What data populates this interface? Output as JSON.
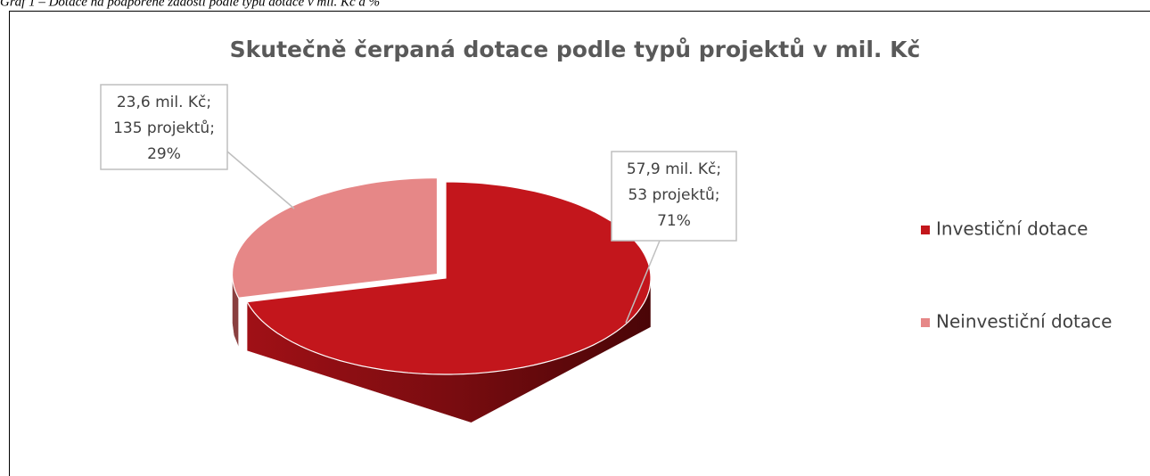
{
  "caption": "Graf 1 – Dotace na podpořené žádosti podle typu dotace v mil. Kč a %",
  "chart_data": {
    "type": "pie3d",
    "title": "Skutečně čerpaná dotace podle typů projektů v mil. Kč",
    "categories": [
      "Investiční dotace",
      "Neinvestiční dotace"
    ],
    "values": [
      57.9,
      23.6
    ],
    "value_labels": [
      [
        "57,9 mil. Kč;",
        "53 projektů;",
        "71%"
      ],
      [
        "23,6 mil. Kč;",
        "135 projektů;",
        "29%"
      ]
    ],
    "colors": [
      "#c3161c",
      "#e68787"
    ],
    "legend": "right"
  }
}
